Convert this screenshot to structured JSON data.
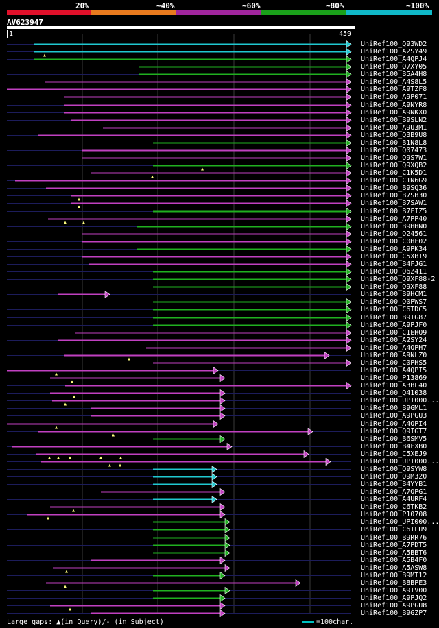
{
  "legend": {
    "labels": [
      "20%",
      "~40%",
      "~60%",
      "~80%",
      "~100%"
    ],
    "colors": [
      "#e0102a",
      "#e87a1e",
      "#a0259c",
      "#1aa01a",
      "#10b8c8"
    ]
  },
  "query": {
    "name": "AV623947",
    "start": "1",
    "end": "459",
    "length": 459
  },
  "colors": {
    "magenta": "#c040c0",
    "green": "#20b020",
    "cyan": "#20c8d0",
    "dim": "#1c1c5a",
    "grid": "#3a3a3a",
    "gap": "#ffff80"
  },
  "hits": [
    {
      "label": "UniRef100_Q93WD2",
      "c": "c",
      "s": 50,
      "e": 512,
      "arrow": true,
      "m": []
    },
    {
      "label": "UniRef100_A2SY49",
      "c": "c",
      "s": 50,
      "e": 512,
      "arrow": true,
      "m": [
        65
      ]
    },
    {
      "label": "UniRef100_A4QPJ4",
      "c": "g",
      "s": 50,
      "e": 512,
      "arrow": true,
      "m": []
    },
    {
      "label": "UniRef100_Q7XY05",
      "c": "g",
      "s": 203,
      "e": 512,
      "arrow": true,
      "m": []
    },
    {
      "label": "UniRef100_B5A4H8",
      "c": "g",
      "s": 203,
      "e": 512,
      "arrow": true,
      "m": []
    },
    {
      "label": "UniRef100_A4S8L5",
      "c": "m",
      "s": 65,
      "e": 512,
      "arrow": true,
      "m": []
    },
    {
      "label": "UniRef100_A9TZF8",
      "c": "m",
      "s": 10,
      "e": 512,
      "arrow": true,
      "m": []
    },
    {
      "label": "UniRef100_A9P071",
      "c": "m",
      "s": 93,
      "e": 512,
      "arrow": true,
      "m": []
    },
    {
      "label": "UniRef100_A9NYR8",
      "c": "m",
      "s": 93,
      "e": 512,
      "arrow": true,
      "m": []
    },
    {
      "label": "UniRef100_A9NKX0",
      "c": "m",
      "s": 93,
      "e": 512,
      "arrow": true,
      "m": []
    },
    {
      "label": "UniRef100_B9SLN2",
      "c": "m",
      "s": 103,
      "e": 512,
      "arrow": true,
      "m": []
    },
    {
      "label": "UniRef100_A9U3M1",
      "c": "m",
      "s": 150,
      "e": 512,
      "arrow": true,
      "m": []
    },
    {
      "label": "UniRef100_Q3B9U8",
      "c": "m",
      "s": 55,
      "e": 512,
      "arrow": true,
      "m": []
    },
    {
      "label": "UniRef100_B1N8L8",
      "c": "g",
      "s": 223,
      "e": 512,
      "arrow": true,
      "m": []
    },
    {
      "label": "UniRef100_Q07473",
      "c": "m",
      "s": 120,
      "e": 512,
      "arrow": true,
      "m": []
    },
    {
      "label": "UniRef100_Q9S7W1",
      "c": "m",
      "s": 120,
      "e": 512,
      "arrow": true,
      "m": []
    },
    {
      "label": "UniRef100_Q9XQB2",
      "c": "g",
      "s": 223,
      "e": 512,
      "arrow": true,
      "m": [
        295
      ]
    },
    {
      "label": "UniRef100_C1K5D1",
      "c": "m",
      "s": 133,
      "e": 512,
      "arrow": true,
      "m": [
        222
      ]
    },
    {
      "label": "UniRef100_C1N6G9",
      "c": "m",
      "s": 22,
      "e": 512,
      "arrow": true,
      "m": []
    },
    {
      "label": "UniRef100_B9SQ36",
      "c": "m",
      "s": 67,
      "e": 512,
      "arrow": true,
      "m": []
    },
    {
      "label": "UniRef100_B7SB30",
      "c": "m",
      "s": 103,
      "e": 512,
      "arrow": true,
      "m": [
        115
      ]
    },
    {
      "label": "UniRef100_B7SAW1",
      "c": "m",
      "s": 103,
      "e": 512,
      "arrow": true,
      "m": [
        115
      ]
    },
    {
      "label": "UniRef100_B7FIZ5",
      "c": "g",
      "s": 223,
      "e": 512,
      "arrow": true,
      "m": []
    },
    {
      "label": "UniRef100_A7PP40",
      "c": "m",
      "s": 70,
      "e": 512,
      "arrow": true,
      "m": [
        95,
        122
      ]
    },
    {
      "label": "UniRef100_B9HHN0",
      "c": "g",
      "s": 200,
      "e": 512,
      "arrow": true,
      "m": []
    },
    {
      "label": "UniRef100_O24561",
      "c": "m",
      "s": 120,
      "e": 512,
      "arrow": true,
      "m": []
    },
    {
      "label": "UniRef100_C0HF02",
      "c": "m",
      "s": 120,
      "e": 512,
      "arrow": true,
      "m": []
    },
    {
      "label": "UniRef100_A9PK34",
      "c": "g",
      "s": 200,
      "e": 512,
      "arrow": true,
      "m": []
    },
    {
      "label": "UniRef100_C5XBI9",
      "c": "m",
      "s": 120,
      "e": 512,
      "arrow": true,
      "m": []
    },
    {
      "label": "UniRef100_B4FJG1",
      "c": "m",
      "s": 130,
      "e": 512,
      "arrow": true,
      "m": []
    },
    {
      "label": "UniRef100_Q6Z411",
      "c": "g",
      "s": 223,
      "e": 512,
      "arrow": true,
      "m": []
    },
    {
      "label": "UniRef100_Q9XF88-2",
      "c": "g",
      "s": 223,
      "e": 512,
      "arrow": true,
      "m": []
    },
    {
      "label": "UniRef100_Q9XF88",
      "c": "g",
      "s": 223,
      "e": 512,
      "arrow": true,
      "m": []
    },
    {
      "label": "UniRef100_B9HCM1",
      "c": "m",
      "s": 85,
      "e": 160,
      "arrow": true,
      "m": []
    },
    {
      "label": "UniRef100_Q0PWS7",
      "c": "g",
      "s": 223,
      "e": 512,
      "arrow": true,
      "m": []
    },
    {
      "label": "UniRef100_C6TDC5",
      "c": "g",
      "s": 223,
      "e": 512,
      "arrow": true,
      "m": []
    },
    {
      "label": "UniRef100_B9IG87",
      "c": "g",
      "s": 223,
      "e": 512,
      "arrow": true,
      "m": []
    },
    {
      "label": "UniRef100_A9PJF0",
      "c": "g",
      "s": 223,
      "e": 512,
      "arrow": true,
      "m": []
    },
    {
      "label": "UniRef100_C1EHQ9",
      "c": "m",
      "s": 110,
      "e": 512,
      "arrow": true,
      "m": []
    },
    {
      "label": "UniRef100_A2SY24",
      "c": "m",
      "s": 85,
      "e": 512,
      "arrow": true,
      "m": []
    },
    {
      "label": "UniRef100_A4QPH7",
      "c": "m",
      "s": 213,
      "e": 512,
      "arrow": true,
      "m": []
    },
    {
      "label": "UniRef100_A9NLZ0",
      "c": "m",
      "s": 93,
      "e": 480,
      "arrow": true,
      "m": [
        188
      ]
    },
    {
      "label": "UniRef100_C0PHS5",
      "c": "m",
      "s": 223,
      "e": 512,
      "arrow": true,
      "m": []
    },
    {
      "label": "UniRef100_A4QPI5",
      "c": "m",
      "s": 10,
      "e": 318,
      "arrow": true,
      "m": [
        82
      ]
    },
    {
      "label": "UniRef100_P13869",
      "c": "m",
      "s": 73,
      "e": 328,
      "arrow": true,
      "m": [
        105
      ]
    },
    {
      "label": "UniRef100_A3BL40",
      "c": "m",
      "s": 95,
      "e": 512,
      "arrow": true,
      "m": []
    },
    {
      "label": "UniRef100_Q41038",
      "c": "m",
      "s": 73,
      "e": 328,
      "arrow": true,
      "m": [
        108
      ]
    },
    {
      "label": "UniRef100_UPI000...",
      "c": "m",
      "s": 76,
      "e": 328,
      "arrow": true,
      "m": [
        95
      ]
    },
    {
      "label": "UniRef100_B9GML1",
      "c": "m",
      "s": 133,
      "e": 328,
      "arrow": true,
      "m": []
    },
    {
      "label": "UniRef100_A9PGU3",
      "c": "m",
      "s": 133,
      "e": 328,
      "arrow": true,
      "m": []
    },
    {
      "label": "UniRef100_A4QPI4",
      "c": "m",
      "s": 10,
      "e": 318,
      "arrow": true,
      "m": [
        82
      ]
    },
    {
      "label": "UniRef100_Q9IGT7",
      "c": "m",
      "s": 55,
      "e": 456,
      "arrow": true,
      "m": [
        165
      ]
    },
    {
      "label": "UniRef100_B6SMV5",
      "c": "g",
      "s": 223,
      "e": 328,
      "arrow": true,
      "m": []
    },
    {
      "label": "UniRef100_B4FXB0",
      "c": "m",
      "s": 18,
      "e": 338,
      "arrow": true,
      "m": []
    },
    {
      "label": "UniRef100_C5XEJ9",
      "c": "m",
      "s": 52,
      "e": 450,
      "arrow": true,
      "m": [
        72,
        85,
        102,
        147,
        176
      ]
    },
    {
      "label": "UniRef100_UPI000...",
      "c": "m",
      "s": 60,
      "e": 482,
      "arrow": true,
      "m": [
        160,
        175
      ]
    },
    {
      "label": "UniRef100_Q9SYW8",
      "c": "c",
      "s": 223,
      "e": 316,
      "arrow": true,
      "m": []
    },
    {
      "label": "UniRef100_Q9M320",
      "c": "c",
      "s": 223,
      "e": 316,
      "arrow": true,
      "m": []
    },
    {
      "label": "UniRef100_B4YYB1",
      "c": "c",
      "s": 223,
      "e": 316,
      "arrow": true,
      "m": []
    },
    {
      "label": "UniRef100_A7QPG1",
      "c": "m",
      "s": 147,
      "e": 328,
      "arrow": true,
      "m": []
    },
    {
      "label": "UniRef100_A4URF4",
      "c": "c",
      "s": 223,
      "e": 316,
      "arrow": true,
      "m": []
    },
    {
      "label": "UniRef100_C6TKB2",
      "c": "m",
      "s": 73,
      "e": 328,
      "arrow": true,
      "m": [
        107
      ]
    },
    {
      "label": "UniRef100_P10708",
      "c": "m",
      "s": 40,
      "e": 328,
      "arrow": true,
      "m": [
        70
      ]
    },
    {
      "label": "UniRef100_UPI000...",
      "c": "g",
      "s": 223,
      "e": 335,
      "arrow": true,
      "m": []
    },
    {
      "label": "UniRef100_C6TLU9",
      "c": "g",
      "s": 223,
      "e": 335,
      "arrow": true,
      "m": []
    },
    {
      "label": "UniRef100_B9RR76",
      "c": "g",
      "s": 223,
      "e": 335,
      "arrow": true,
      "m": []
    },
    {
      "label": "UniRef100_A7PDT5",
      "c": "g",
      "s": 223,
      "e": 335,
      "arrow": true,
      "m": []
    },
    {
      "label": "UniRef100_A5BBT6",
      "c": "g",
      "s": 223,
      "e": 335,
      "arrow": true,
      "m": []
    },
    {
      "label": "UniRef100_A5B4F0",
      "c": "m",
      "s": 133,
      "e": 328,
      "arrow": true,
      "m": []
    },
    {
      "label": "UniRef100_A5ASW8",
      "c": "m",
      "s": 77,
      "e": 335,
      "arrow": true,
      "m": [
        97
      ]
    },
    {
      "label": "UniRef100_B9MT12",
      "c": "g",
      "s": 223,
      "e": 328,
      "arrow": true,
      "m": []
    },
    {
      "label": "UniRef100_B8BPE3",
      "c": "m",
      "s": 67,
      "e": 438,
      "arrow": true,
      "m": [
        95
      ]
    },
    {
      "label": "UniRef100_A9TV00",
      "c": "g",
      "s": 223,
      "e": 335,
      "arrow": true,
      "m": []
    },
    {
      "label": "UniRef100_A9PJQ2",
      "c": "g",
      "s": 223,
      "e": 328,
      "arrow": true,
      "m": []
    },
    {
      "label": "UniRef100_A9PGU8",
      "c": "m",
      "s": 73,
      "e": 328,
      "arrow": true,
      "m": [
        102
      ]
    },
    {
      "label": "UniRef100_B9GZP7",
      "c": "m",
      "s": 133,
      "e": 328,
      "arrow": true,
      "m": []
    }
  ],
  "footer": {
    "gaps_text": "Large gaps: ▲(in Query)/- (in Subject)",
    "scale_text": "=100char."
  }
}
